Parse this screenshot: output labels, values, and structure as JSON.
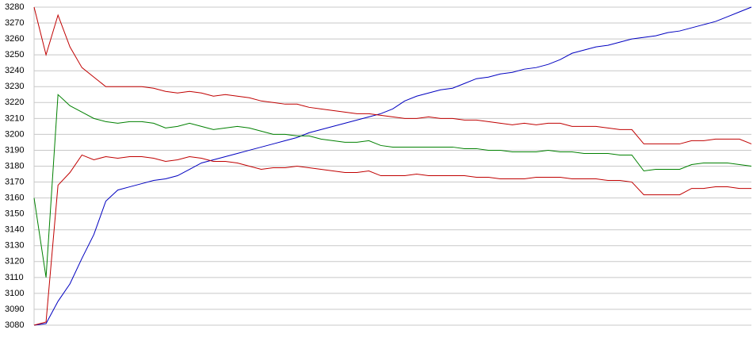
{
  "chart_data": {
    "type": "line",
    "ylim": [
      3080,
      3280
    ],
    "yticks": [
      3080,
      3090,
      3100,
      3110,
      3120,
      3130,
      3140,
      3150,
      3160,
      3170,
      3180,
      3190,
      3200,
      3210,
      3220,
      3230,
      3240,
      3250,
      3260,
      3270,
      3280
    ],
    "grid": true,
    "series": [
      {
        "color": "#0000c0",
        "values": [
          3080,
          3081,
          3095,
          3106,
          3122,
          3137,
          3158,
          3165,
          3167,
          3169,
          3171,
          3172,
          3174,
          3178,
          3182,
          3184,
          3186,
          3188,
          3190,
          3192,
          3194,
          3196,
          3198,
          3201,
          3203,
          3205,
          3207,
          3209,
          3211,
          3213,
          3216,
          3221,
          3224,
          3226,
          3228,
          3229,
          3232,
          3235,
          3236,
          3238,
          3239,
          3241,
          3242,
          3244,
          3247,
          3251,
          3253,
          3255,
          3256,
          3258,
          3260,
          3261,
          3262,
          3264,
          3265,
          3267,
          3269,
          3271,
          3274,
          3277,
          3280
        ]
      },
      {
        "color": "#c00000",
        "values": [
          3280,
          3250,
          3275,
          3255,
          3242,
          3236,
          3230,
          3230,
          3230,
          3230,
          3229,
          3227,
          3226,
          3227,
          3226,
          3224,
          3225,
          3224,
          3223,
          3221,
          3220,
          3219,
          3219,
          3217,
          3216,
          3215,
          3214,
          3213,
          3213,
          3212,
          3211,
          3210,
          3210,
          3211,
          3210,
          3210,
          3209,
          3209,
          3208,
          3207,
          3206,
          3207,
          3206,
          3207,
          3207,
          3205,
          3205,
          3205,
          3204,
          3203,
          3203,
          3194,
          3194,
          3194,
          3194,
          3196,
          3196,
          3197,
          3197,
          3197,
          3194
        ]
      },
      {
        "color": "#008000",
        "values": [
          3160,
          3110,
          3225,
          3218,
          3214,
          3210,
          3208,
          3207,
          3208,
          3208,
          3207,
          3204,
          3205,
          3207,
          3205,
          3203,
          3204,
          3205,
          3204,
          3202,
          3200,
          3200,
          3199,
          3199,
          3197,
          3196,
          3195,
          3195,
          3196,
          3193,
          3192,
          3192,
          3192,
          3192,
          3192,
          3192,
          3191,
          3191,
          3190,
          3190,
          3189,
          3189,
          3189,
          3190,
          3189,
          3189,
          3188,
          3188,
          3188,
          3187,
          3187,
          3177,
          3178,
          3178,
          3178,
          3181,
          3182,
          3182,
          3182,
          3181,
          3180
        ]
      },
      {
        "color": "#c00000",
        "values": [
          3080,
          3082,
          3168,
          3176,
          3187,
          3184,
          3186,
          3185,
          3186,
          3186,
          3185,
          3183,
          3184,
          3186,
          3185,
          3183,
          3183,
          3182,
          3180,
          3178,
          3179,
          3179,
          3180,
          3179,
          3178,
          3177,
          3176,
          3176,
          3177,
          3174,
          3174,
          3174,
          3175,
          3174,
          3174,
          3174,
          3174,
          3173,
          3173,
          3172,
          3172,
          3172,
          3173,
          3173,
          3173,
          3172,
          3172,
          3172,
          3171,
          3171,
          3170,
          3162,
          3162,
          3162,
          3162,
          3166,
          3166,
          3167,
          3167,
          3166,
          3166
        ]
      }
    ]
  }
}
